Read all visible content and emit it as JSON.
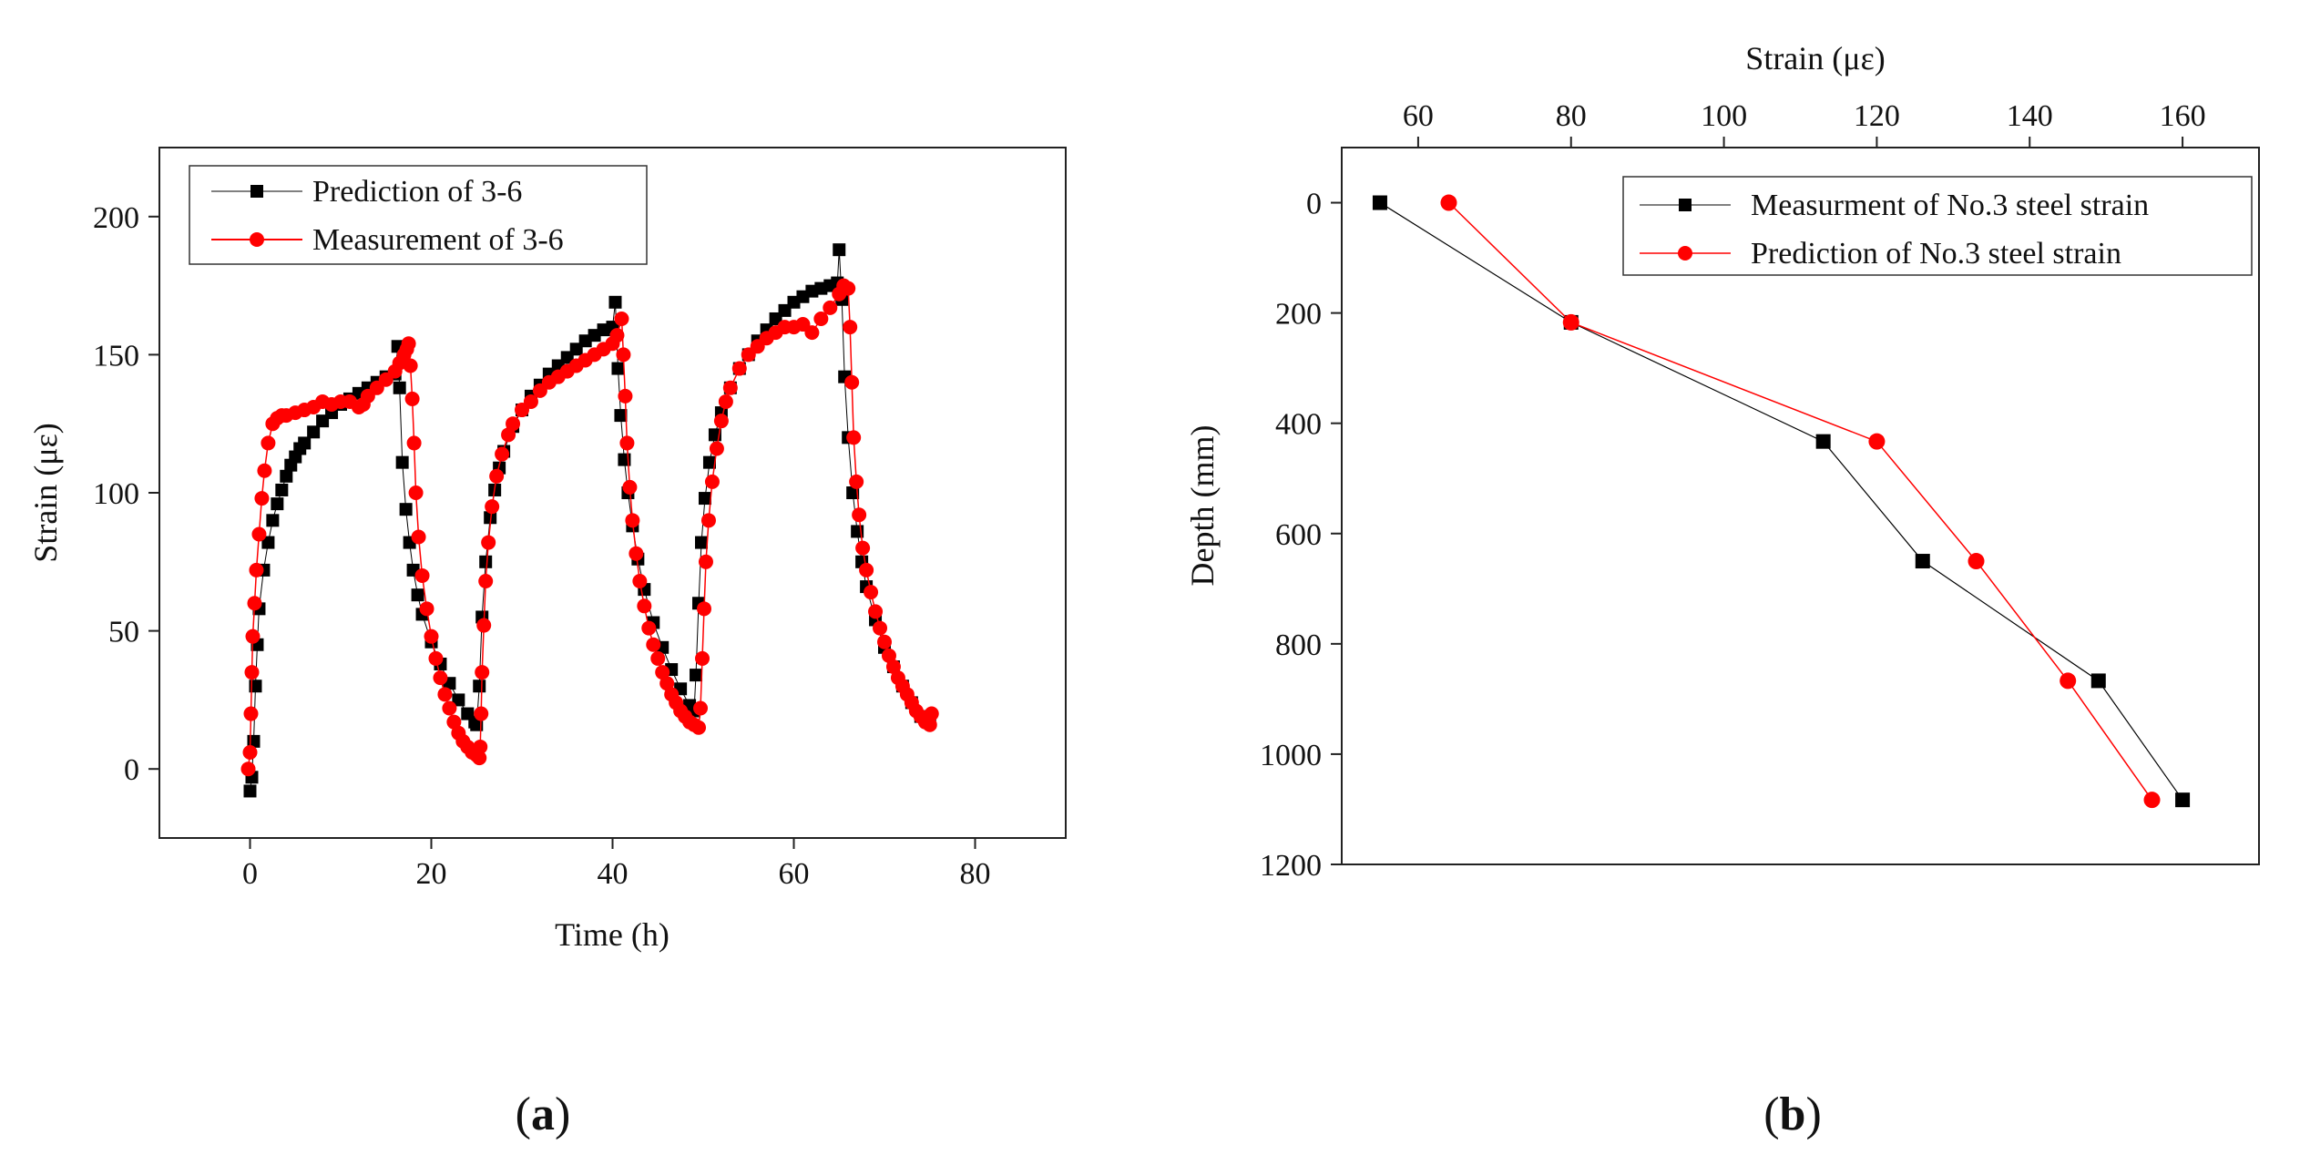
{
  "chart_data": [
    {
      "panel": "(a)",
      "type": "scatter",
      "title": "",
      "xlabel": "Time (h)",
      "ylabel": "Strain (με)",
      "xlim": [
        -10,
        90
      ],
      "ylim": [
        -25,
        225
      ],
      "xticks": [
        0,
        20,
        40,
        60,
        80
      ],
      "yticks": [
        0,
        50,
        100,
        150,
        200
      ],
      "legend_position": "top-left",
      "series": [
        {
          "name": "Prediction of 3-6",
          "color": "#000000",
          "marker": "square",
          "points": [
            [
              0.0,
              -8
            ],
            [
              0.2,
              -3
            ],
            [
              0.4,
              10
            ],
            [
              0.6,
              30
            ],
            [
              0.8,
              45
            ],
            [
              1.0,
              58
            ],
            [
              1.5,
              72
            ],
            [
              2.0,
              82
            ],
            [
              2.5,
              90
            ],
            [
              3.0,
              96
            ],
            [
              3.5,
              101
            ],
            [
              4.0,
              106
            ],
            [
              4.5,
              110
            ],
            [
              5.0,
              113
            ],
            [
              5.5,
              116
            ],
            [
              6.0,
              118
            ],
            [
              7.0,
              122
            ],
            [
              8.0,
              126
            ],
            [
              9.0,
              129
            ],
            [
              10.0,
              132
            ],
            [
              11.0,
              134
            ],
            [
              12.0,
              136
            ],
            [
              13.0,
              138
            ],
            [
              14.0,
              140
            ],
            [
              15.0,
              142
            ],
            [
              16.0,
              143
            ],
            [
              16.3,
              153
            ],
            [
              16.5,
              138
            ],
            [
              16.8,
              111
            ],
            [
              17.2,
              94
            ],
            [
              17.6,
              82
            ],
            [
              18.0,
              72
            ],
            [
              18.5,
              63
            ],
            [
              19.0,
              56
            ],
            [
              20.0,
              46
            ],
            [
              21.0,
              38
            ],
            [
              22.0,
              31
            ],
            [
              23.0,
              25
            ],
            [
              24.0,
              20
            ],
            [
              24.8,
              17
            ],
            [
              25.0,
              16
            ],
            [
              25.3,
              30
            ],
            [
              25.6,
              55
            ],
            [
              26.0,
              75
            ],
            [
              26.5,
              91
            ],
            [
              27.0,
              101
            ],
            [
              27.5,
              109
            ],
            [
              28.0,
              115
            ],
            [
              29.0,
              124
            ],
            [
              30.0,
              130
            ],
            [
              31.0,
              135
            ],
            [
              32.0,
              139
            ],
            [
              33.0,
              143
            ],
            [
              34.0,
              146
            ],
            [
              35.0,
              149
            ],
            [
              36.0,
              152
            ],
            [
              37.0,
              155
            ],
            [
              38.0,
              157
            ],
            [
              39.0,
              159
            ],
            [
              40.0,
              160
            ],
            [
              40.3,
              169
            ],
            [
              40.6,
              145
            ],
            [
              40.9,
              128
            ],
            [
              41.3,
              112
            ],
            [
              41.7,
              100
            ],
            [
              42.2,
              88
            ],
            [
              42.8,
              76
            ],
            [
              43.5,
              65
            ],
            [
              44.5,
              53
            ],
            [
              45.5,
              44
            ],
            [
              46.5,
              36
            ],
            [
              47.5,
              29
            ],
            [
              48.5,
              23
            ],
            [
              49.0,
              21
            ],
            [
              49.2,
              34
            ],
            [
              49.5,
              60
            ],
            [
              49.8,
              82
            ],
            [
              50.2,
              98
            ],
            [
              50.7,
              111
            ],
            [
              51.3,
              121
            ],
            [
              52.0,
              129
            ],
            [
              53.0,
              138
            ],
            [
              54.0,
              145
            ],
            [
              55.0,
              150
            ],
            [
              56.0,
              155
            ],
            [
              57.0,
              159
            ],
            [
              58.0,
              163
            ],
            [
              59.0,
              166
            ],
            [
              60.0,
              169
            ],
            [
              61.0,
              171
            ],
            [
              62.0,
              173
            ],
            [
              63.0,
              174
            ],
            [
              64.0,
              175
            ],
            [
              64.8,
              176
            ],
            [
              65.0,
              188
            ],
            [
              65.3,
              170
            ],
            [
              65.6,
              142
            ],
            [
              66.0,
              120
            ],
            [
              66.5,
              100
            ],
            [
              67.0,
              86
            ],
            [
              67.5,
              75
            ],
            [
              68.0,
              66
            ],
            [
              69.0,
              54
            ],
            [
              70.0,
              44
            ],
            [
              71.0,
              37
            ],
            [
              72.0,
              30
            ],
            [
              73.0,
              24
            ],
            [
              74.0,
              19
            ],
            [
              75.0,
              17
            ]
          ]
        },
        {
          "name": "Measurement of 3-6",
          "color": "#ff0000",
          "marker": "circle",
          "points": [
            [
              -0.2,
              0
            ],
            [
              0.0,
              6
            ],
            [
              0.1,
              20
            ],
            [
              0.2,
              35
            ],
            [
              0.3,
              48
            ],
            [
              0.5,
              60
            ],
            [
              0.7,
              72
            ],
            [
              1.0,
              85
            ],
            [
              1.3,
              98
            ],
            [
              1.6,
              108
            ],
            [
              2.0,
              118
            ],
            [
              2.5,
              125
            ],
            [
              3.0,
              127
            ],
            [
              3.5,
              128
            ],
            [
              4.0,
              128
            ],
            [
              5.0,
              129
            ],
            [
              6.0,
              130
            ],
            [
              7.0,
              131
            ],
            [
              8.0,
              133
            ],
            [
              9.0,
              132
            ],
            [
              10.0,
              133
            ],
            [
              11.0,
              133
            ],
            [
              12.0,
              131
            ],
            [
              12.5,
              132
            ],
            [
              13.0,
              135
            ],
            [
              14.0,
              138
            ],
            [
              15.0,
              141
            ],
            [
              16.0,
              144
            ],
            [
              16.5,
              147
            ],
            [
              17.0,
              150
            ],
            [
              17.3,
              152
            ],
            [
              17.5,
              154
            ],
            [
              17.7,
              146
            ],
            [
              17.9,
              134
            ],
            [
              18.1,
              118
            ],
            [
              18.3,
              100
            ],
            [
              18.6,
              84
            ],
            [
              19.0,
              70
            ],
            [
              19.5,
              58
            ],
            [
              20.0,
              48
            ],
            [
              20.5,
              40
            ],
            [
              21.0,
              33
            ],
            [
              21.5,
              27
            ],
            [
              22.0,
              22
            ],
            [
              22.5,
              17
            ],
            [
              23.0,
              13
            ],
            [
              23.5,
              10
            ],
            [
              24.0,
              8
            ],
            [
              24.5,
              6
            ],
            [
              25.0,
              5
            ],
            [
              25.3,
              4
            ],
            [
              25.4,
              8
            ],
            [
              25.5,
              20
            ],
            [
              25.6,
              35
            ],
            [
              25.8,
              52
            ],
            [
              26.0,
              68
            ],
            [
              26.3,
              82
            ],
            [
              26.7,
              95
            ],
            [
              27.2,
              106
            ],
            [
              27.8,
              114
            ],
            [
              28.5,
              121
            ],
            [
              29.0,
              125
            ],
            [
              30.0,
              130
            ],
            [
              31.0,
              133
            ],
            [
              32.0,
              137
            ],
            [
              33.0,
              140
            ],
            [
              34.0,
              142
            ],
            [
              35.0,
              144
            ],
            [
              36.0,
              146
            ],
            [
              37.0,
              148
            ],
            [
              38.0,
              150
            ],
            [
              39.0,
              152
            ],
            [
              40.0,
              154
            ],
            [
              40.5,
              157
            ],
            [
              41.0,
              163
            ],
            [
              41.2,
              150
            ],
            [
              41.4,
              135
            ],
            [
              41.6,
              118
            ],
            [
              41.9,
              102
            ],
            [
              42.2,
              90
            ],
            [
              42.6,
              78
            ],
            [
              43.0,
              68
            ],
            [
              43.5,
              59
            ],
            [
              44.0,
              51
            ],
            [
              44.5,
              45
            ],
            [
              45.0,
              40
            ],
            [
              45.5,
              35
            ],
            [
              46.0,
              31
            ],
            [
              46.5,
              27
            ],
            [
              47.0,
              24
            ],
            [
              47.5,
              21
            ],
            [
              48.0,
              19
            ],
            [
              48.5,
              17
            ],
            [
              49.0,
              16
            ],
            [
              49.5,
              15
            ],
            [
              49.7,
              22
            ],
            [
              49.9,
              40
            ],
            [
              50.1,
              58
            ],
            [
              50.3,
              75
            ],
            [
              50.6,
              90
            ],
            [
              51.0,
              104
            ],
            [
              51.5,
              116
            ],
            [
              52.0,
              126
            ],
            [
              52.5,
              133
            ],
            [
              53.0,
              138
            ],
            [
              54.0,
              145
            ],
            [
              55.0,
              150
            ],
            [
              56.0,
              153
            ],
            [
              57.0,
              156
            ],
            [
              58.0,
              158
            ],
            [
              59.0,
              160
            ],
            [
              60.0,
              160
            ],
            [
              61.0,
              161
            ],
            [
              62.0,
              158
            ],
            [
              63.0,
              163
            ],
            [
              64.0,
              167
            ],
            [
              65.0,
              172
            ],
            [
              65.5,
              175
            ],
            [
              66.0,
              174
            ],
            [
              66.2,
              160
            ],
            [
              66.4,
              140
            ],
            [
              66.6,
              120
            ],
            [
              66.9,
              104
            ],
            [
              67.2,
              92
            ],
            [
              67.6,
              80
            ],
            [
              68.0,
              72
            ],
            [
              68.5,
              64
            ],
            [
              69.0,
              57
            ],
            [
              69.5,
              51
            ],
            [
              70.0,
              46
            ],
            [
              70.5,
              41
            ],
            [
              71.0,
              37
            ],
            [
              71.5,
              33
            ],
            [
              72.0,
              30
            ],
            [
              72.5,
              27
            ],
            [
              73.0,
              24
            ],
            [
              73.5,
              21
            ],
            [
              74.0,
              19
            ],
            [
              74.5,
              17
            ],
            [
              75.0,
              16
            ],
            [
              75.2,
              20
            ]
          ]
        }
      ]
    },
    {
      "panel": "(b)",
      "type": "line",
      "title": "",
      "xlabel": "Strain (με)",
      "ylabel": "Depth (mm)",
      "xaxis_position": "top",
      "y_inverted": true,
      "xlim": [
        50,
        170
      ],
      "ylim": [
        -100,
        1200
      ],
      "xticks": [
        60,
        80,
        100,
        120,
        140,
        160
      ],
      "yticks": [
        0,
        200,
        400,
        600,
        800,
        1000,
        1200
      ],
      "legend_position": "top-right",
      "series": [
        {
          "name": "Measurment of No.3 steel strain",
          "color": "#000000",
          "marker": "square",
          "points": [
            [
              55,
              0
            ],
            [
              80,
              217
            ],
            [
              113,
              433
            ],
            [
              126,
              650
            ],
            [
              149,
              867
            ],
            [
              160,
              1083
            ]
          ]
        },
        {
          "name": "Prediction of No.3 steel strain",
          "color": "#ff0000",
          "marker": "circle",
          "points": [
            [
              64,
              0
            ],
            [
              80,
              217
            ],
            [
              120,
              433
            ],
            [
              133,
              650
            ],
            [
              145,
              867
            ],
            [
              156,
              1083
            ]
          ]
        }
      ]
    }
  ],
  "panel_labels": {
    "a": {
      "open": "(",
      "letter": "a",
      "close": ")"
    },
    "b": {
      "open": "(",
      "letter": "b",
      "close": ")"
    }
  }
}
